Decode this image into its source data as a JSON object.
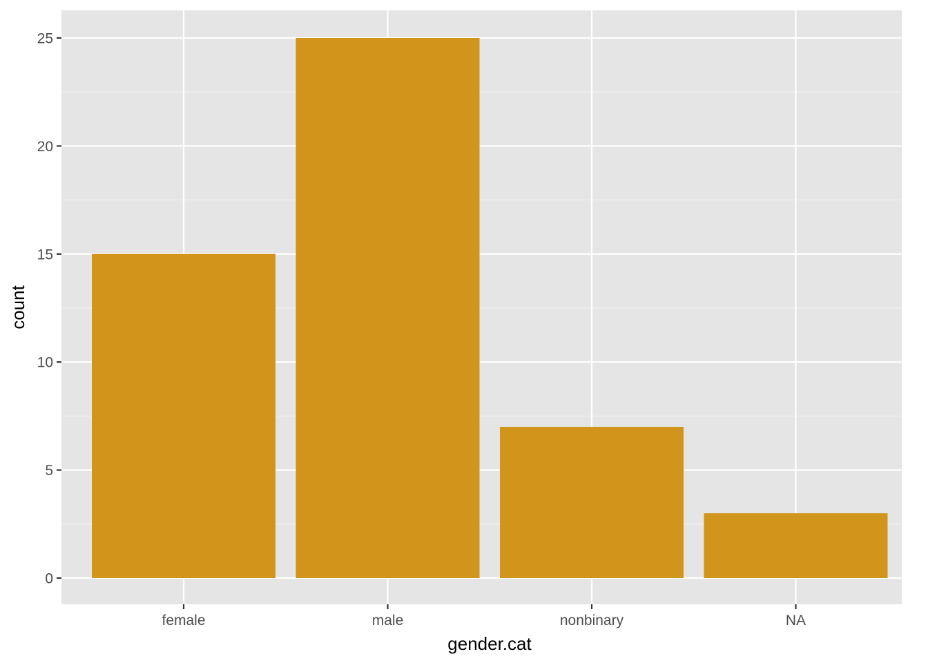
{
  "chart_data": {
    "type": "bar",
    "title": "",
    "xlabel": "gender.cat",
    "ylabel": "count",
    "categories": [
      "female",
      "male",
      "nonbinary",
      "NA"
    ],
    "values": [
      15,
      25,
      7,
      3
    ],
    "ylim": [
      0,
      25
    ],
    "yticks": [
      0,
      5,
      10,
      15,
      20,
      25
    ],
    "bar_color": "#D1951C",
    "panel_background": "#E5E5E5",
    "grid": true,
    "legend": "none"
  }
}
